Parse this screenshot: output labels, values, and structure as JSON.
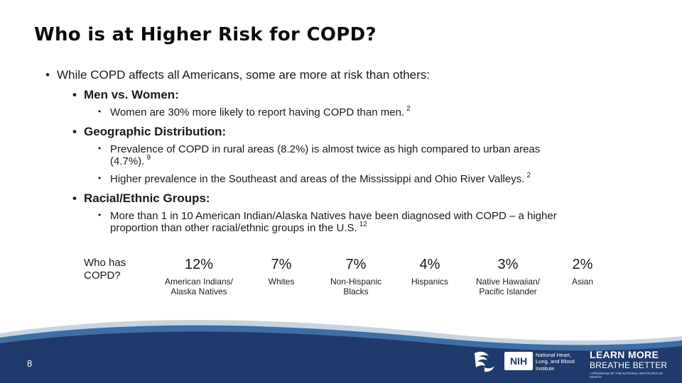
{
  "title": "Who is at Higher Risk for COPD?",
  "bullets": {
    "intro": "While COPD affects all Americans, some are more at risk than others:",
    "men_women": {
      "heading": "Men vs. Women:",
      "item1": "Women are 30% more likely to report having COPD than men.",
      "item1_ref": "2"
    },
    "geographic": {
      "heading": "Geographic Distribution:",
      "item1_line1": "Prevalence of COPD in rural areas (8.2%) is almost twice as high compared to urban areas",
      "item1_line2": "(4.7%).",
      "item1_ref": "9",
      "item2": "Higher prevalence in the Southeast and areas of the Mississippi and Ohio River Valleys.",
      "item2_ref": "2"
    },
    "racial": {
      "heading": "Racial/Ethnic Groups:",
      "item1_line1": "More than 1 in 10 American Indian/Alaska Natives have been diagnosed with COPD – a higher",
      "item1_line2": "proportion than other racial/ethnic groups in the U.S.",
      "item1_ref": "12"
    }
  },
  "stats": {
    "label": "Who has COPD?",
    "items": [
      {
        "pct": "12%",
        "group": "American Indians/\nAlaska Natives"
      },
      {
        "pct": "7%",
        "group": "Whites"
      },
      {
        "pct": "7%",
        "group": "Non-Hispanic\nBlacks"
      },
      {
        "pct": "4%",
        "group": "Hispanics"
      },
      {
        "pct": "3%",
        "group": "Native Hawaiian/\nPacific Islander"
      },
      {
        "pct": "2%",
        "group": "Asian"
      }
    ]
  },
  "footer": {
    "page_number": "8",
    "nih": "NIH",
    "nhlbi": "National Heart, Lung, and Blood Institute",
    "learn_more": "LEARN MORE",
    "breathe_better": "BREATHE BETTER",
    "tagline": "A PROGRAM OF THE NATIONAL INSTITUTES OF HEALTH",
    "colors": {
      "navy": "#1f3b6b",
      "light_blue": "#3d6ea5",
      "ring": "#c9d3e0"
    }
  }
}
